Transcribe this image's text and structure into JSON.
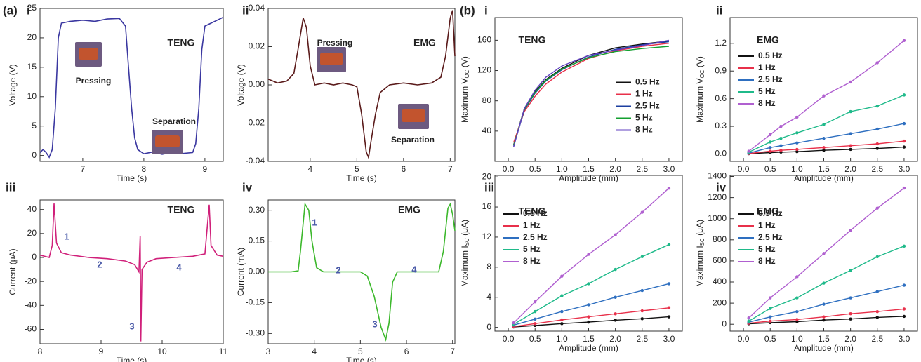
{
  "figure_labels": [
    "(a)",
    "(b)"
  ],
  "chart_data": [
    {
      "type": "line",
      "panel": "i",
      "xlabel": "Time (s)",
      "ylabel": "Voltage (V)",
      "xlim": [
        6.3,
        9.3
      ],
      "ylim": [
        -1,
        25
      ],
      "xticks": [
        7,
        8,
        9
      ],
      "yticks": [
        0,
        5,
        10,
        15,
        20,
        25
      ],
      "annotations": [
        "TENG",
        "Pressing",
        "Separation"
      ],
      "series": [
        {
          "color": "#3a37a0",
          "x": [
            6.3,
            6.35,
            6.4,
            6.45,
            6.5,
            6.55,
            6.6,
            6.65,
            6.8,
            7.0,
            7.2,
            7.4,
            7.6,
            7.7,
            7.75,
            7.8,
            7.85,
            7.9,
            8.0,
            8.15,
            8.3,
            8.45,
            8.6,
            8.8,
            8.85,
            8.9,
            8.95,
            9.0,
            9.1,
            9.2,
            9.3
          ],
          "values": [
            0.5,
            1,
            0.5,
            -0.3,
            1,
            8,
            20,
            22.5,
            22.8,
            23,
            22.8,
            23.2,
            23.3,
            22,
            15,
            8,
            3,
            1,
            0.3,
            0.6,
            0.2,
            0.5,
            0.3,
            0.5,
            2,
            8,
            18,
            22,
            22.5,
            23,
            23.5
          ]
        }
      ]
    },
    {
      "type": "line",
      "panel": "ii",
      "xlabel": "Time (s)",
      "ylabel": "Voltage (V)",
      "xlim": [
        3.1,
        7.1
      ],
      "ylim": [
        -0.04,
        0.04
      ],
      "xticks": [
        4,
        5,
        6,
        7
      ],
      "yticks": [
        {
          "value": -0.04,
          "label": "-0.04"
        },
        {
          "value": -0.02,
          "label": "-0.02"
        },
        {
          "value": 0,
          "label": "0.00"
        },
        {
          "value": 0.02,
          "label": "0.02"
        },
        {
          "value": 0.04,
          "label": "0.04"
        }
      ],
      "annotations": [
        "Pressing",
        "EMG",
        "Separation"
      ],
      "series": [
        {
          "color": "#5a1a1a",
          "x": [
            3.1,
            3.3,
            3.5,
            3.65,
            3.75,
            3.85,
            3.92,
            4.0,
            4.1,
            4.3,
            4.5,
            4.7,
            4.9,
            5.0,
            5.1,
            5.2,
            5.25,
            5.3,
            5.4,
            5.5,
            5.7,
            6.0,
            6.3,
            6.6,
            6.8,
            6.9,
            7.0,
            7.05,
            7.1
          ],
          "values": [
            0.003,
            0.001,
            0.002,
            0.006,
            0.02,
            0.035,
            0.03,
            0.01,
            0,
            0.001,
            0,
            0.001,
            0,
            -0.001,
            -0.015,
            -0.035,
            -0.038,
            -0.03,
            -0.015,
            -0.004,
            0,
            0.001,
            0,
            0.001,
            0.004,
            0.015,
            0.035,
            0.039,
            0.015
          ]
        }
      ]
    },
    {
      "type": "line",
      "panel": "iii",
      "xlabel": "Time (s)",
      "ylabel": "Current (μA)",
      "xlim": [
        8,
        11
      ],
      "ylim": [
        -72,
        48
      ],
      "xticks": [
        8,
        9,
        10,
        11
      ],
      "yticks": [
        -60,
        -40,
        -20,
        0,
        20,
        40
      ],
      "annotations": [
        "TENG",
        "1",
        "2",
        "3",
        "4"
      ],
      "series": [
        {
          "color": "#d0207a",
          "x": [
            8.0,
            8.15,
            8.2,
            8.23,
            8.27,
            8.35,
            8.5,
            8.8,
            9.1,
            9.4,
            9.55,
            9.62,
            9.64,
            9.65,
            9.67,
            9.75,
            9.9,
            10.2,
            10.5,
            10.7,
            10.77,
            10.8,
            10.9,
            11.0
          ],
          "values": [
            2,
            0,
            10,
            45,
            12,
            4,
            2,
            0,
            -1,
            -3,
            -6,
            -12,
            18,
            -70,
            -10,
            -4,
            -1,
            0,
            1,
            3,
            44,
            10,
            2,
            1
          ]
        }
      ]
    },
    {
      "type": "line",
      "panel": "iv",
      "xlabel": "Time (s)",
      "ylabel": "Current (mA)",
      "xlim": [
        3,
        7.05
      ],
      "ylim": [
        -0.35,
        0.35
      ],
      "xticks": [
        3,
        4,
        5,
        6,
        7
      ],
      "yticks": [
        {
          "value": -0.3,
          "label": "-0.30"
        },
        -0.15,
        {
          "value": 0,
          "label": "0.00"
        },
        0.15,
        {
          "value": 0.3,
          "label": "0.30"
        }
      ],
      "annotations": [
        "EMG",
        "1",
        "2",
        "3",
        "4"
      ],
      "series": [
        {
          "color": "#3cb82c",
          "x": [
            3,
            3.5,
            3.65,
            3.7,
            3.8,
            3.88,
            3.95,
            4.05,
            4.2,
            5.0,
            5.15,
            5.3,
            5.45,
            5.55,
            5.62,
            5.7,
            5.8,
            6.7,
            6.8,
            6.9,
            6.95,
            7.0,
            7.05
          ],
          "values": [
            0,
            0,
            0.005,
            0.1,
            0.33,
            0.3,
            0.15,
            0.02,
            0,
            0,
            -0.02,
            -0.12,
            -0.27,
            -0.33,
            -0.25,
            -0.05,
            0,
            0,
            0.1,
            0.31,
            0.33,
            0.28,
            0.2
          ]
        }
      ]
    },
    {
      "type": "line",
      "panel": "i",
      "xlabel": "Amplitude (mm)",
      "ylabel": [
        "Maximum V",
        "OC",
        " (V)"
      ],
      "legend": "center right",
      "xlim": [
        -0.25,
        3.25
      ],
      "ylim": [
        0,
        190
      ],
      "xticks": [
        {
          "value": 0,
          "label": "0.0"
        },
        0.5,
        {
          "value": 1,
          "label": "1.0"
        },
        1.5,
        {
          "value": 2,
          "label": "2.0"
        },
        2.5,
        {
          "value": 3,
          "label": "3.0"
        }
      ],
      "yticks": [
        40,
        80,
        120,
        160
      ],
      "annotations": [
        "TENG"
      ],
      "series": [
        {
          "name": "0.5 Hz",
          "color": "#111111",
          "x": [
            0.1,
            0.3,
            0.5,
            0.7,
            1.0,
            1.5,
            2.0,
            2.5,
            3.0
          ],
          "values": [
            22,
            70,
            92,
            108,
            123,
            140,
            150,
            155,
            159
          ]
        },
        {
          "name": "1 Hz",
          "color": "#e8304a",
          "x": [
            0.1,
            0.3,
            0.5,
            0.7,
            1.0,
            1.5,
            2.0,
            2.5,
            3.0
          ],
          "values": [
            25,
            66,
            86,
            102,
            118,
            136,
            146,
            152,
            156
          ]
        },
        {
          "name": "2.5 Hz",
          "color": "#1c3fa0",
          "x": [
            0.1,
            0.3,
            0.5,
            0.7,
            1.0,
            1.5,
            2.0,
            2.5,
            3.0
          ],
          "values": [
            20,
            68,
            90,
            106,
            121,
            138,
            148,
            154,
            158
          ]
        },
        {
          "name": "5 Hz",
          "color": "#14a030",
          "x": [
            0.1,
            0.3,
            0.5,
            0.7,
            1.0,
            1.5,
            2.0,
            2.5,
            3.0
          ],
          "values": [
            21,
            69,
            91,
            107,
            122,
            137,
            145,
            149,
            152
          ]
        },
        {
          "name": "8 Hz",
          "color": "#6040c0",
          "x": [
            0.1,
            0.3,
            0.5,
            0.7,
            1.0,
            1.5,
            2.0,
            2.5,
            3.0
          ],
          "values": [
            19,
            70,
            94,
            111,
            126,
            140,
            147,
            153,
            160
          ]
        }
      ]
    },
    {
      "type": "line",
      "panel": "ii",
      "xlabel": "Amplitude (mm)",
      "ylabel": [
        "Maximum V",
        "OC",
        " (V)"
      ],
      "legend": "upper left",
      "markers": true,
      "xlim": [
        -0.25,
        3.25
      ],
      "ylim": [
        -0.08,
        1.48
      ],
      "xticks": [
        {
          "value": 0,
          "label": "0.0"
        },
        0.5,
        {
          "value": 1,
          "label": "1.0"
        },
        1.5,
        {
          "value": 2,
          "label": "2.0"
        },
        2.5,
        {
          "value": 3,
          "label": "3.0"
        }
      ],
      "yticks": [
        {
          "value": 0,
          "label": "0.0"
        },
        0.3,
        0.6,
        0.9,
        1.2
      ],
      "annotations": [
        "EMG"
      ],
      "series": [
        {
          "name": "0.5 Hz",
          "color": "#111111",
          "x": [
            0.1,
            0.5,
            0.7,
            1.0,
            1.5,
            2.0,
            2.5,
            3.0
          ],
          "values": [
            0.003,
            0.015,
            0.02,
            0.025,
            0.04,
            0.05,
            0.06,
            0.075
          ]
        },
        {
          "name": "1 Hz",
          "color": "#e8304a",
          "x": [
            0.1,
            0.5,
            0.7,
            1.0,
            1.5,
            2.0,
            2.5,
            3.0
          ],
          "values": [
            0.005,
            0.03,
            0.04,
            0.05,
            0.07,
            0.09,
            0.11,
            0.14
          ]
        },
        {
          "name": "2.5 Hz",
          "color": "#2e6fc0",
          "x": [
            0.1,
            0.5,
            0.7,
            1.0,
            1.5,
            2.0,
            2.5,
            3.0
          ],
          "values": [
            0.01,
            0.07,
            0.09,
            0.12,
            0.17,
            0.22,
            0.27,
            0.33
          ]
        },
        {
          "name": "5 Hz",
          "color": "#1fba8a",
          "x": [
            0.1,
            0.5,
            0.7,
            1.0,
            1.5,
            2.0,
            2.5,
            3.0
          ],
          "values": [
            0.02,
            0.13,
            0.17,
            0.23,
            0.32,
            0.46,
            0.52,
            0.64
          ]
        },
        {
          "name": "8 Hz",
          "color": "#b060d0",
          "x": [
            0.1,
            0.5,
            0.7,
            1.0,
            1.5,
            2.0,
            2.5,
            3.0
          ],
          "values": [
            0.03,
            0.21,
            0.3,
            0.4,
            0.63,
            0.78,
            0.99,
            1.23
          ]
        }
      ]
    },
    {
      "type": "line",
      "panel": "iii",
      "xlabel": "Amplitude (mm)",
      "ylabel": [
        "Maximum I",
        "SC",
        " (μA)"
      ],
      "legend": "upper left",
      "markers": true,
      "xlim": [
        -0.25,
        3.25
      ],
      "ylim": [
        -0.5,
        20.2
      ],
      "xticks": [
        {
          "value": 0,
          "label": "0.0"
        },
        0.5,
        {
          "value": 1,
          "label": "1.0"
        },
        1.5,
        {
          "value": 2,
          "label": "2.0"
        },
        2.5,
        {
          "value": 3,
          "label": "3.0"
        }
      ],
      "yticks": [
        0,
        4,
        8,
        12,
        16,
        20
      ],
      "annotations": [
        "TENG"
      ],
      "series": [
        {
          "name": "0.5 Hz",
          "color": "#111111",
          "x": [
            0.1,
            0.5,
            1.0,
            1.5,
            2.0,
            2.5,
            3.0
          ],
          "values": [
            0.05,
            0.25,
            0.5,
            0.7,
            0.95,
            1.15,
            1.4
          ]
        },
        {
          "name": "1 Hz",
          "color": "#e8304a",
          "x": [
            0.1,
            0.5,
            1.0,
            1.5,
            2.0,
            2.5,
            3.0
          ],
          "values": [
            0.1,
            0.5,
            1.0,
            1.4,
            1.8,
            2.2,
            2.6
          ]
        },
        {
          "name": "2.5 Hz",
          "color": "#2e6fc0",
          "x": [
            0.1,
            0.5,
            1.0,
            1.5,
            2.0,
            2.5,
            3.0
          ],
          "values": [
            0.3,
            1.1,
            2.1,
            3.0,
            4.0,
            4.9,
            5.8
          ]
        },
        {
          "name": "5 Hz",
          "color": "#1fba8a",
          "x": [
            0.1,
            0.5,
            1.0,
            1.5,
            2.0,
            2.5,
            3.0
          ],
          "values": [
            0.4,
            2.1,
            4.2,
            5.8,
            7.7,
            9.4,
            11.0
          ]
        },
        {
          "name": "8 Hz",
          "color": "#b060d0",
          "x": [
            0.1,
            0.5,
            1.0,
            1.5,
            2.0,
            2.5,
            3.0
          ],
          "values": [
            0.6,
            3.4,
            6.8,
            9.7,
            12.3,
            15.3,
            18.5
          ]
        }
      ]
    },
    {
      "type": "line",
      "panel": "iv",
      "xlabel": "Amplitude (mm)",
      "ylabel": [
        "Maximum I",
        "SC",
        " (μA)"
      ],
      "legend": "upper left",
      "markers": true,
      "xlim": [
        -0.25,
        3.25
      ],
      "ylim": [
        -65,
        1410
      ],
      "xticks": [
        {
          "value": 0,
          "label": "0.0"
        },
        0.5,
        {
          "value": 1,
          "label": "1.0"
        },
        1.5,
        {
          "value": 2,
          "label": "2.0"
        },
        2.5,
        {
          "value": 3,
          "label": "3.0"
        }
      ],
      "yticks": [
        0,
        200,
        400,
        600,
        800,
        1000,
        1200,
        1400
      ],
      "annotations": [
        "EMG"
      ],
      "series": [
        {
          "name": "0.5 Hz",
          "color": "#111111",
          "x": [
            0.1,
            0.5,
            1.0,
            1.5,
            2.0,
            2.5,
            3.0
          ],
          "values": [
            5,
            15,
            25,
            40,
            50,
            65,
            75
          ]
        },
        {
          "name": "1 Hz",
          "color": "#e8304a",
          "x": [
            0.1,
            0.5,
            1.0,
            1.5,
            2.0,
            2.5,
            3.0
          ],
          "values": [
            10,
            30,
            45,
            70,
            100,
            120,
            145
          ]
        },
        {
          "name": "2.5 Hz",
          "color": "#2e6fc0",
          "x": [
            0.1,
            0.5,
            1.0,
            1.5,
            2.0,
            2.5,
            3.0
          ],
          "values": [
            20,
            70,
            120,
            190,
            250,
            310,
            370
          ]
        },
        {
          "name": "5 Hz",
          "color": "#1fba8a",
          "x": [
            0.1,
            0.5,
            1.0,
            1.5,
            2.0,
            2.5,
            3.0
          ],
          "values": [
            30,
            150,
            250,
            390,
            510,
            640,
            740
          ]
        },
        {
          "name": "8 Hz",
          "color": "#b060d0",
          "x": [
            0.1,
            0.5,
            1.0,
            1.5,
            2.0,
            2.5,
            3.0
          ],
          "values": [
            60,
            250,
            450,
            670,
            890,
            1100,
            1290
          ]
        }
      ]
    }
  ]
}
